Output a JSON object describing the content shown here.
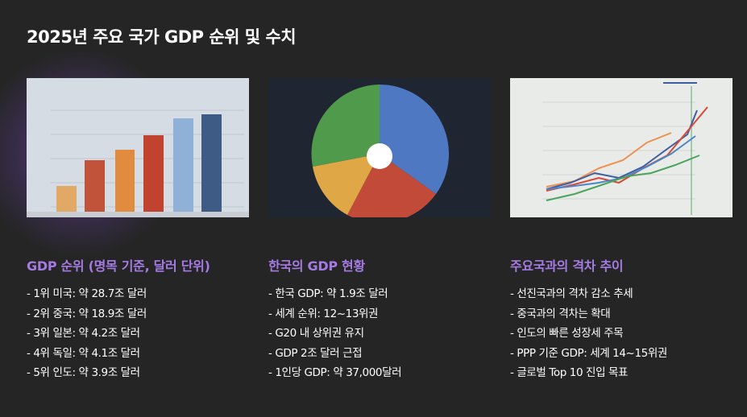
{
  "title": "2025년 주요 국가 GDP 순위 및 수치",
  "sections": [
    {
      "heading": "GDP 순위 (명목 기준, 달러 단위)",
      "items": [
        "- 1위 미국: 약 28.7조 달러",
        "- 2위 중국: 약 18.9조 달러",
        "- 3위 일본: 약 4.2조 달러",
        "- 4위 독일: 약 4.1조 달러",
        "- 5위 인도: 약 3.9조 달러"
      ]
    },
    {
      "heading": "한국의 GDP 현황",
      "items": [
        "- 한국 GDP: 약 1.9조 달러",
        "- 세계 순위: 12~13위권",
        "- G20 내 상위권 유지",
        "- GDP 2조 달러 근접",
        "- 1인당 GDP: 약 37,000달러"
      ]
    },
    {
      "heading": "주요국과의 격차 추이",
      "items": [
        "- 선진국과의 격차 감소 추세",
        "- 중국과의 격차는 확대",
        "- 인도의 빠른 성장세 주목",
        "- PPP 기준 GDP: 세계 14~15위권",
        "- 글로벌 Top 10 진입 목표"
      ]
    }
  ]
}
